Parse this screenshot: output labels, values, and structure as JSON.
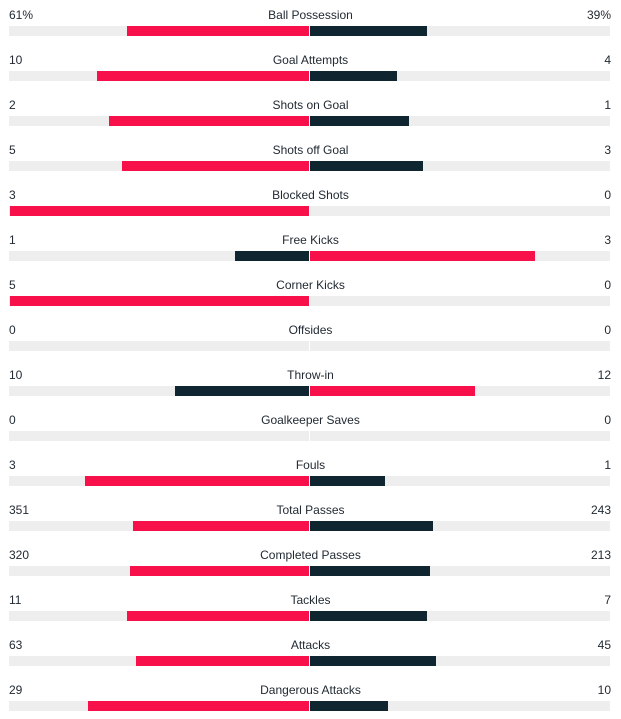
{
  "colors": {
    "dominant": "#f8104a",
    "secondary": "#0f2630",
    "track": "#eeeeee",
    "text": "#222a33"
  },
  "stats": [
    {
      "label": "Ball Possession",
      "home": "61%",
      "away": "39%",
      "home_share": 0.61,
      "away_share": 0.39,
      "home_pct": 0.61,
      "away_pct": 0.39
    },
    {
      "label": "Goal Attempts",
      "home": "10",
      "away": "4",
      "home_share": 0.71,
      "away_share": 0.29
    },
    {
      "label": "Shots on Goal",
      "home": "2",
      "away": "1",
      "home_share": 0.67,
      "away_share": 0.33
    },
    {
      "label": "Shots off Goal",
      "home": "5",
      "away": "3",
      "home_share": 0.625,
      "away_share": 0.375
    },
    {
      "label": "Blocked Shots",
      "home": "3",
      "away": "0",
      "home_share": 1.0,
      "away_share": 0.0
    },
    {
      "label": "Free Kicks",
      "home": "1",
      "away": "3",
      "home_share": 0.25,
      "away_share": 0.75
    },
    {
      "label": "Corner Kicks",
      "home": "5",
      "away": "0",
      "home_share": 1.0,
      "away_share": 0.0
    },
    {
      "label": "Offsides",
      "home": "0",
      "away": "0",
      "home_share": 0.0,
      "away_share": 0.0
    },
    {
      "label": "Throw-in",
      "home": "10",
      "away": "12",
      "home_share": 0.45,
      "away_share": 0.55
    },
    {
      "label": "Goalkeeper Saves",
      "home": "0",
      "away": "0",
      "home_share": 0.0,
      "away_share": 0.0
    },
    {
      "label": "Fouls",
      "home": "3",
      "away": "1",
      "home_share": 0.75,
      "away_share": 0.25
    },
    {
      "label": "Total Passes",
      "home": "351",
      "away": "243",
      "home_share": 0.59,
      "away_share": 0.41
    },
    {
      "label": "Completed Passes",
      "home": "320",
      "away": "213",
      "home_share": 0.6,
      "away_share": 0.4
    },
    {
      "label": "Tackles",
      "home": "11",
      "away": "7",
      "home_share": 0.61,
      "away_share": 0.39
    },
    {
      "label": "Attacks",
      "home": "63",
      "away": "45",
      "home_share": 0.58,
      "away_share": 0.42
    },
    {
      "label": "Dangerous Attacks",
      "home": "29",
      "away": "10",
      "home_share": 0.74,
      "away_share": 0.26
    }
  ]
}
